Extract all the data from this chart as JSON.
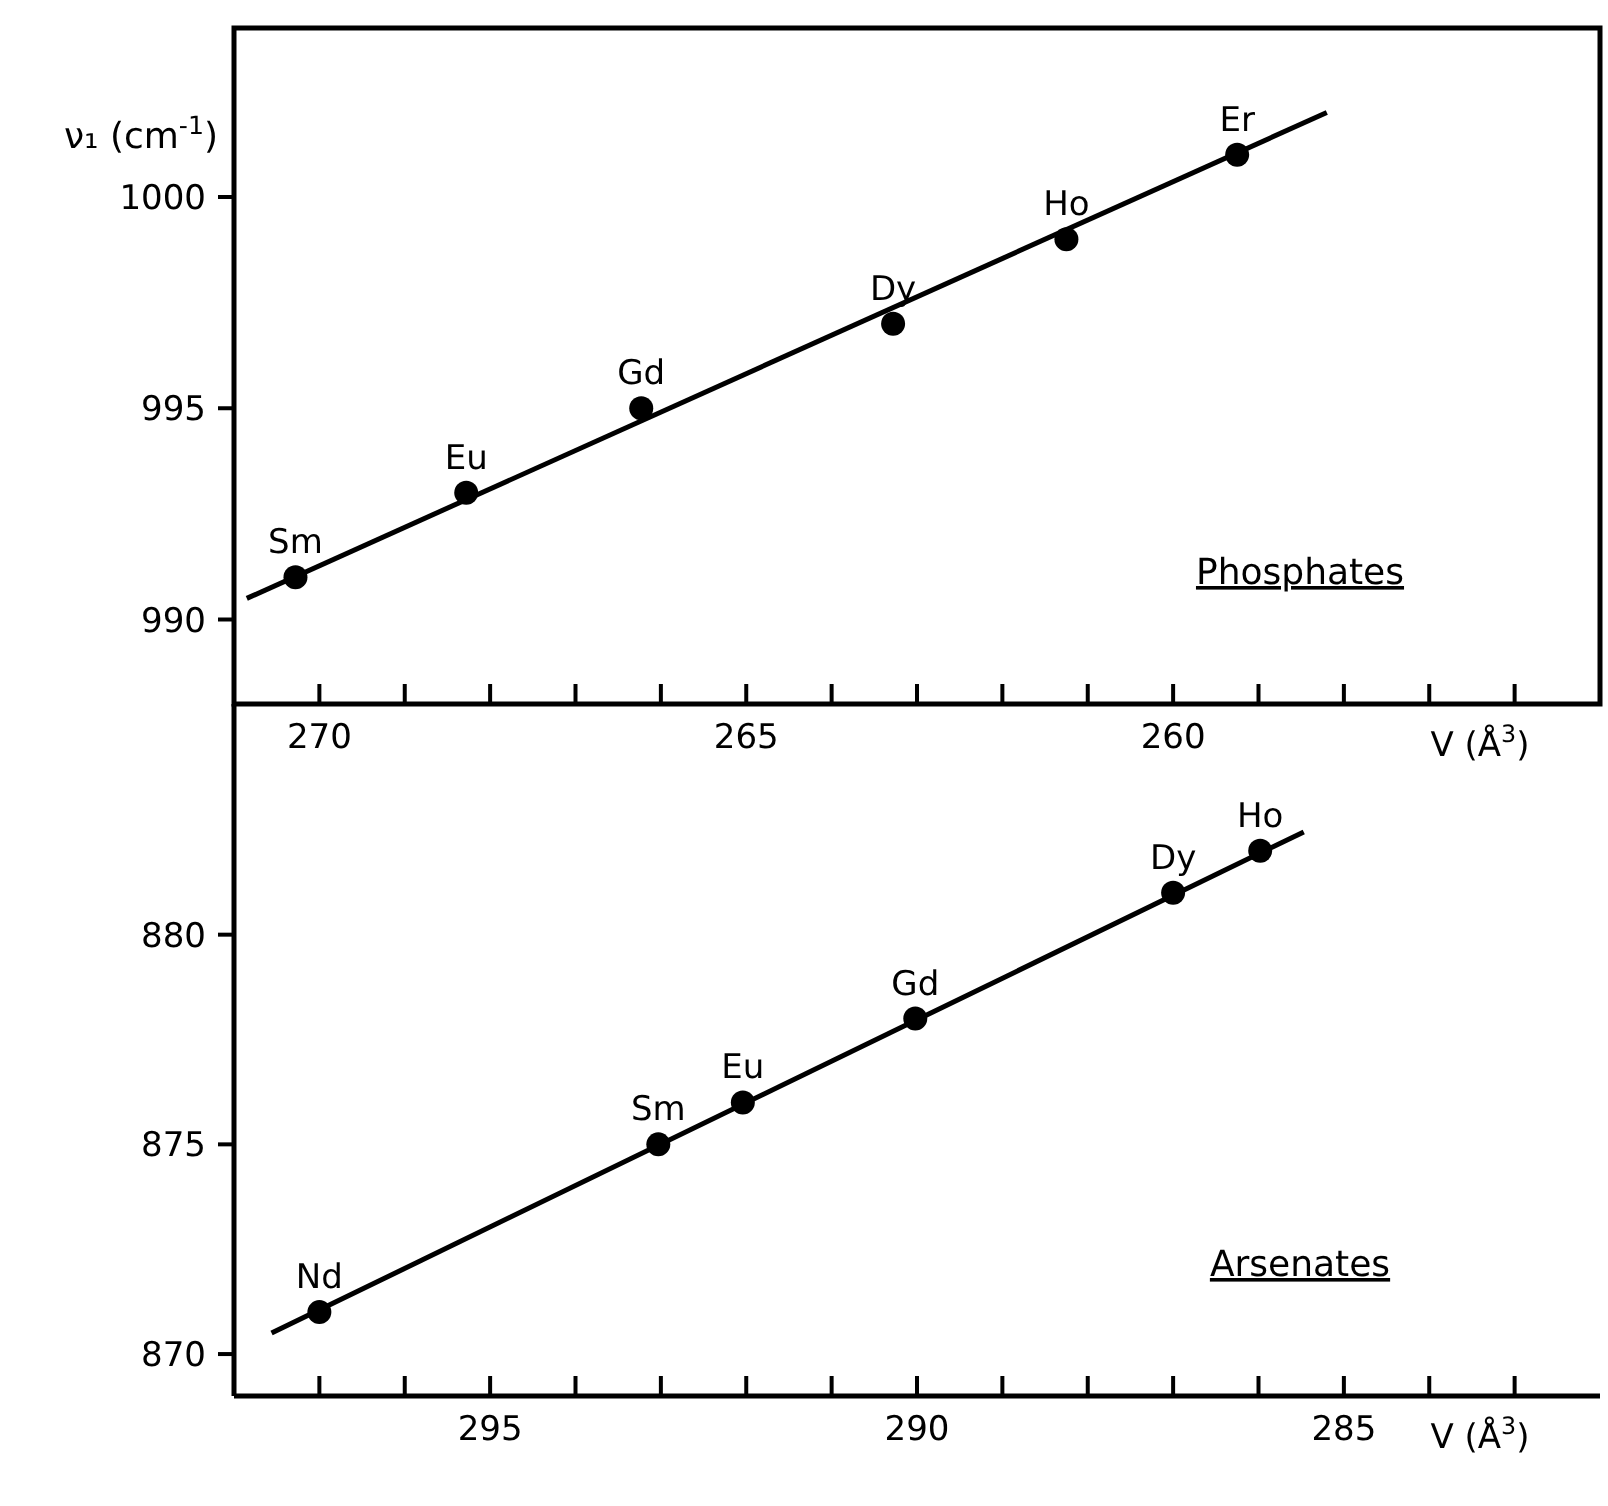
{
  "chart_data": [
    {
      "type": "scatter",
      "ylabel": "ν₁ (cm$^{-1}$)",
      "xlabel": "V (Å$^{3}$)",
      "xlim": [
        271,
        255
      ],
      "ylim": [
        988,
        1004
      ],
      "xticks": [
        {
          "value": 271,
          "label": null
        },
        270,
        {
          "value": 269,
          "label": null
        },
        {
          "value": 268,
          "label": null
        },
        {
          "value": 267,
          "label": null
        },
        {
          "value": 266,
          "label": null
        },
        265,
        {
          "value": 264,
          "label": null
        },
        {
          "value": 263,
          "label": null
        },
        {
          "value": 262,
          "label": null
        },
        {
          "value": 261,
          "label": null
        },
        260,
        {
          "value": 259,
          "label": null
        },
        {
          "value": 258,
          "label": null
        },
        {
          "value": 257,
          "label": null
        },
        {
          "value": 256,
          "label": null
        }
      ],
      "yticks": [
        990,
        995,
        1000
      ],
      "series": [
        {
          "color": "#000000",
          "marker": "circle",
          "x": [
            270.28,
            268.28,
            266.23,
            263.28,
            261.25,
            259.25
          ],
          "values": [
            991,
            993,
            995,
            997,
            999,
            1001
          ]
        },
        {
          "type": "line",
          "color": "#000000",
          "marker": "none",
          "line_style": "solid",
          "x": [
            270.85,
            258.2
          ],
          "values": [
            990.5,
            1002
          ]
        }
      ],
      "annotations": [
        {
          "text": "Sm",
          "x": 270.28,
          "y": 991
        },
        {
          "text": "Eu",
          "x": 268.28,
          "y": 993
        },
        {
          "text": "Gd",
          "x": 266.23,
          "y": 995
        },
        {
          "text": "Dy",
          "x": 263.28,
          "y": 997
        },
        {
          "text": "Ho",
          "x": 261.25,
          "y": 999
        },
        {
          "text": "Er",
          "x": 259.25,
          "y": 1001
        },
        "Phosphates"
      ]
    },
    {
      "type": "scatter",
      "xlabel": "V (Å$^{3}$)",
      "xlim": [
        298,
        282
      ],
      "ylim": [
        869,
        885.5
      ],
      "xticks": [
        {
          "value": 297,
          "label": null
        },
        {
          "value": 296,
          "label": null
        },
        295,
        {
          "value": 294,
          "label": null
        },
        {
          "value": 293,
          "label": null
        },
        {
          "value": 292,
          "label": null
        },
        {
          "value": 291,
          "label": null
        },
        290,
        {
          "value": 289,
          "label": null
        },
        {
          "value": 288,
          "label": null
        },
        {
          "value": 287,
          "label": null
        },
        {
          "value": 286,
          "label": null
        },
        285,
        {
          "value": 284,
          "label": null
        },
        {
          "value": 283,
          "label": null
        }
      ],
      "yticks": [
        870,
        875,
        880
      ],
      "series": [
        {
          "color": "#000000",
          "marker": "circle",
          "x": [
            297,
            293.03,
            292.04,
            290.02,
            287,
            285.98
          ],
          "values": [
            871,
            875,
            876,
            878,
            881,
            882
          ]
        },
        {
          "type": "line",
          "color": "#000000",
          "marker": "none",
          "line_style": "solid",
          "x": [
            297.56,
            285.47
          ],
          "values": [
            870.5,
            882.45
          ]
        }
      ],
      "annotations": [
        {
          "text": "Nd",
          "x": 297,
          "y": 871
        },
        {
          "text": "Sm",
          "x": 293.03,
          "y": 875
        },
        {
          "text": "Eu",
          "x": 292.04,
          "y": 876
        },
        {
          "text": "Gd",
          "x": 290.02,
          "y": 878
        },
        {
          "text": "Dy",
          "x": 287,
          "y": 881
        },
        {
          "text": "Ho",
          "x": 285.98,
          "y": 882
        },
        "Arsenates"
      ]
    }
  ]
}
